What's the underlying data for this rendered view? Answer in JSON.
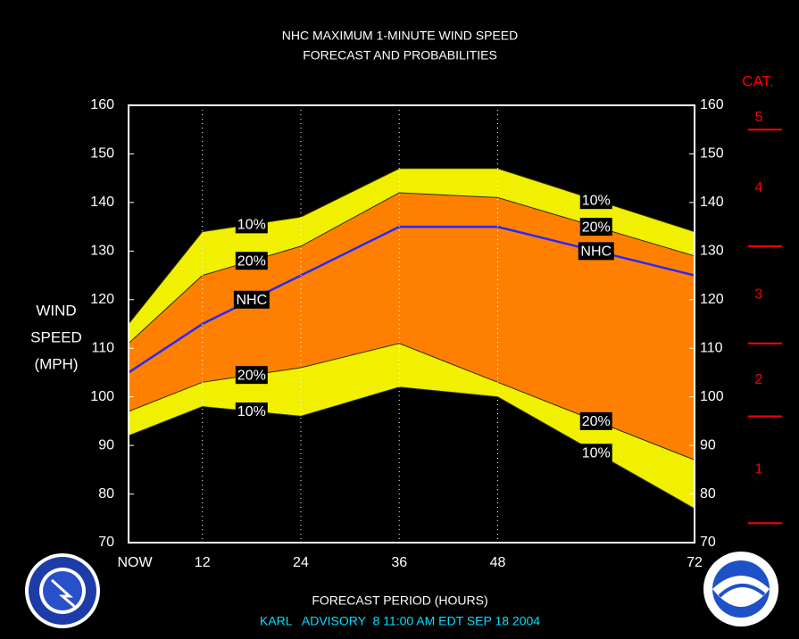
{
  "chart_data": {
    "type": "band",
    "title": "NHC MAXIMUM 1-MINUTE WIND SPEED",
    "subtitle": "FORECAST AND PROBABILITIES",
    "x_label": "FORECAST PERIOD (HOURS)",
    "y_label": [
      "WIND",
      "SPEED",
      "(MPH)"
    ],
    "footer": "KARL   ADVISORY  8 11:00 AM EDT SEP 18 2004",
    "x": [
      3,
      12,
      24,
      36,
      48,
      72
    ],
    "xlim": [
      3,
      72
    ],
    "xticks": [
      {
        "value": 3,
        "label": "NOW"
      },
      12,
      24,
      36,
      48,
      72
    ],
    "ylim": [
      70,
      160
    ],
    "yticks": [
      70,
      80,
      90,
      100,
      110,
      120,
      130,
      140,
      150,
      160
    ],
    "grid": true,
    "series": [
      {
        "name": "10%",
        "color": "#f0f000",
        "values": [
          115,
          134,
          137,
          147,
          147,
          134
        ],
        "lower": [
          92,
          98,
          96,
          102,
          100,
          77
        ]
      },
      {
        "name": "20%",
        "color": "#ff8000",
        "values": [
          111,
          125,
          131,
          142,
          141,
          129
        ],
        "lower": [
          97,
          103,
          106,
          111,
          103,
          87
        ]
      },
      {
        "name": "NHC",
        "color": "#2828ff",
        "values": [
          105,
          115,
          125,
          135,
          135,
          125
        ]
      }
    ],
    "category_scale": {
      "title": "CAT.",
      "thresholds": [
        74,
        96,
        111,
        131,
        155
      ],
      "labels": [
        "1",
        "2",
        "3",
        "4",
        "5"
      ],
      "color": "#ff0000"
    }
  }
}
